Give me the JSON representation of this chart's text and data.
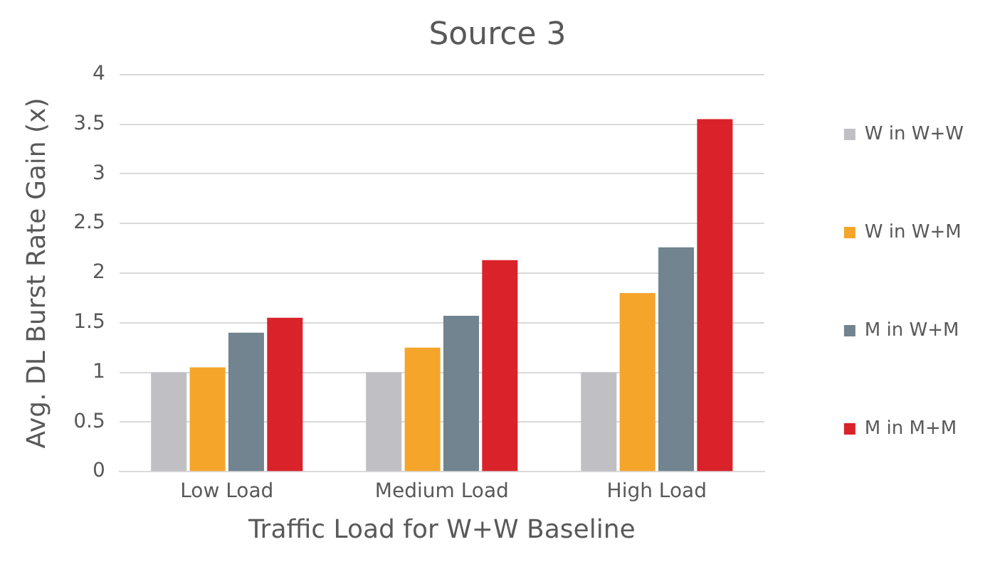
{
  "chart_data": {
    "type": "bar",
    "title": "Source 3",
    "xlabel": "Traffic Load for W+W Baseline",
    "ylabel": "Avg. DL Burst Rate Gain (x)",
    "categories": [
      "Low Load",
      "Medium Load",
      "High Load"
    ],
    "series": [
      {
        "name": "W in W+W",
        "color": "#bfbfc4",
        "values": [
          1.0,
          1.0,
          1.0
        ]
      },
      {
        "name": "W in W+M",
        "color": "#f5a52a",
        "values": [
          1.05,
          1.25,
          1.8
        ]
      },
      {
        "name": "M in W+M",
        "color": "#71848f",
        "values": [
          1.4,
          1.57,
          2.26
        ]
      },
      {
        "name": "M in M+M",
        "color": "#d9222a",
        "values": [
          1.55,
          2.13,
          3.55
        ]
      }
    ],
    "ylim": [
      0,
      4
    ],
    "yticks": [
      0,
      0.5,
      1,
      1.5,
      2,
      2.5,
      3,
      3.5,
      4
    ],
    "grid": "y",
    "legend": "right"
  }
}
